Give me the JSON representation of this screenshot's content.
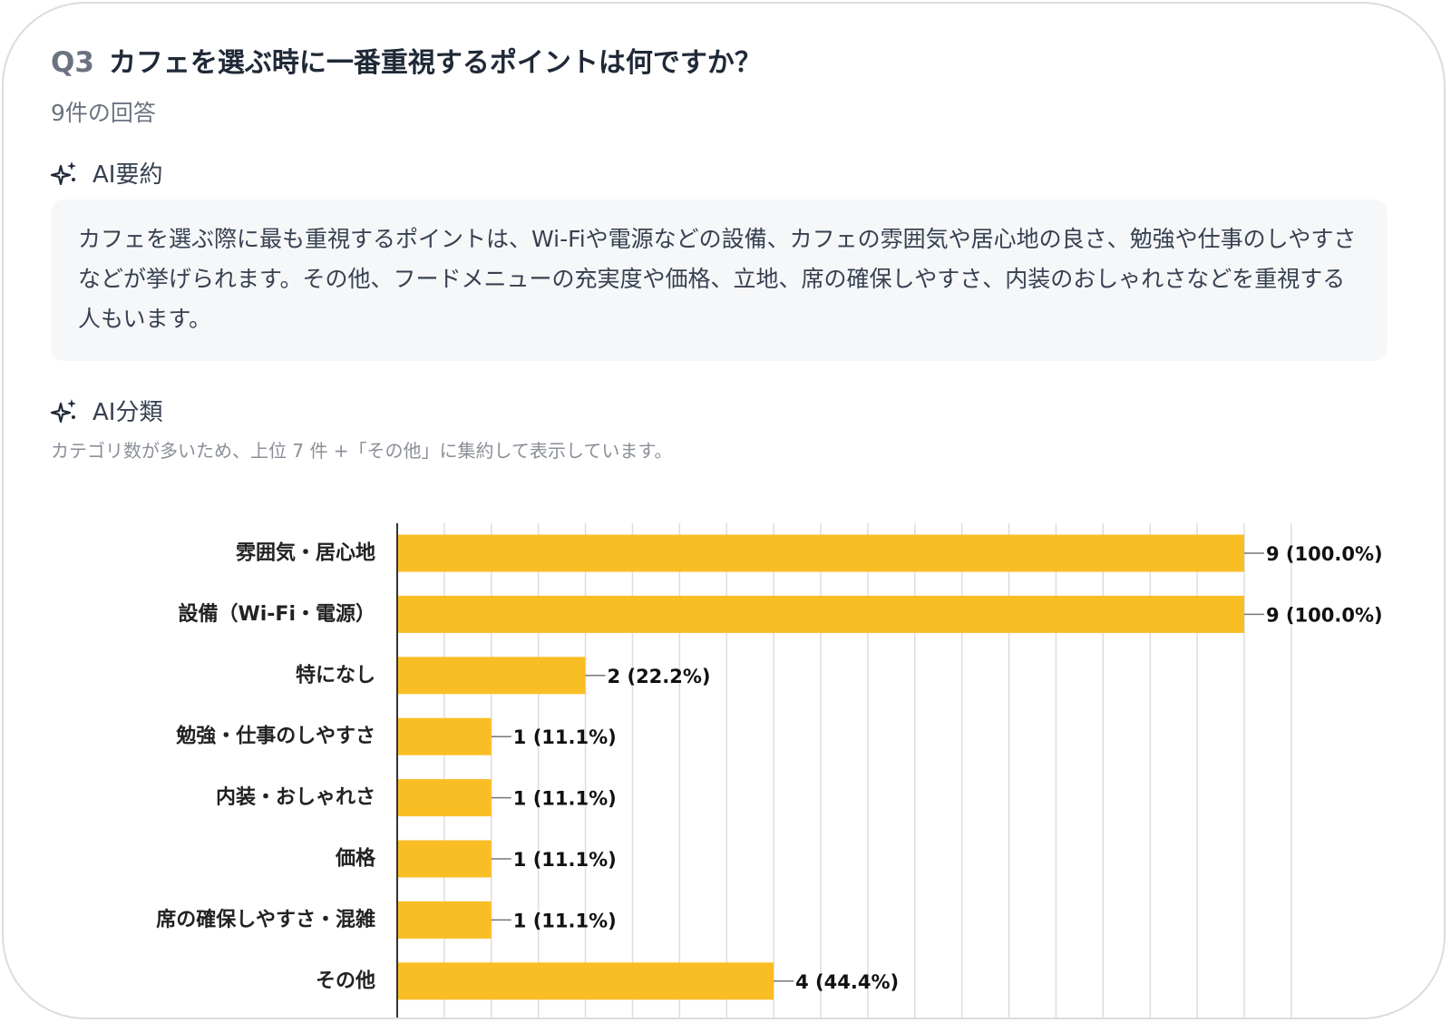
{
  "question": {
    "number": "Q3",
    "title": "カフェを選ぶ時に一番重視するポイントは何ですか？",
    "response_count": "9件の回答"
  },
  "ai_summary": {
    "label": "AI要約",
    "icon": "sparkle-icon",
    "text": "カフェを選ぶ際に最も重視するポイントは、Wi-Fiや電源などの設備、カフェの雰囲気や居心地の良さ、勉強や仕事のしやすさなどが挙げられます。その他、フードメニューの充実度や価格、立地、席の確保しやすさ、内装のおしゃれさなどを重視する人もいます。"
  },
  "ai_classification": {
    "label": "AI分類",
    "icon": "sparkle-icon",
    "note": "カテゴリ数が多いため、上位 7 件 +「その他」に集約して表示しています。"
  },
  "colors": {
    "bar": "#FABE25",
    "grid": "#dddddd",
    "axis": "#333333"
  },
  "chart_data": {
    "type": "bar",
    "orientation": "horizontal",
    "categories": [
      "雰囲気・居心地",
      "設備（Wi-Fi・電源）",
      "特になし",
      "勉強・仕事のしやすさ",
      "内装・おしゃれさ",
      "価格",
      "席の確保しやすさ・混雑",
      "その他"
    ],
    "values": [
      9,
      9,
      2,
      1,
      1,
      1,
      1,
      4
    ],
    "value_labels": [
      "9 (100.0%)",
      "9 (100.0%)",
      "2 (22.2%)",
      "1 (11.1%)",
      "1 (11.1%)",
      "1 (11.1%)",
      "1 (11.1%)",
      "4 (44.4%)"
    ],
    "xlim": [
      0,
      9
    ],
    "grid": true
  }
}
